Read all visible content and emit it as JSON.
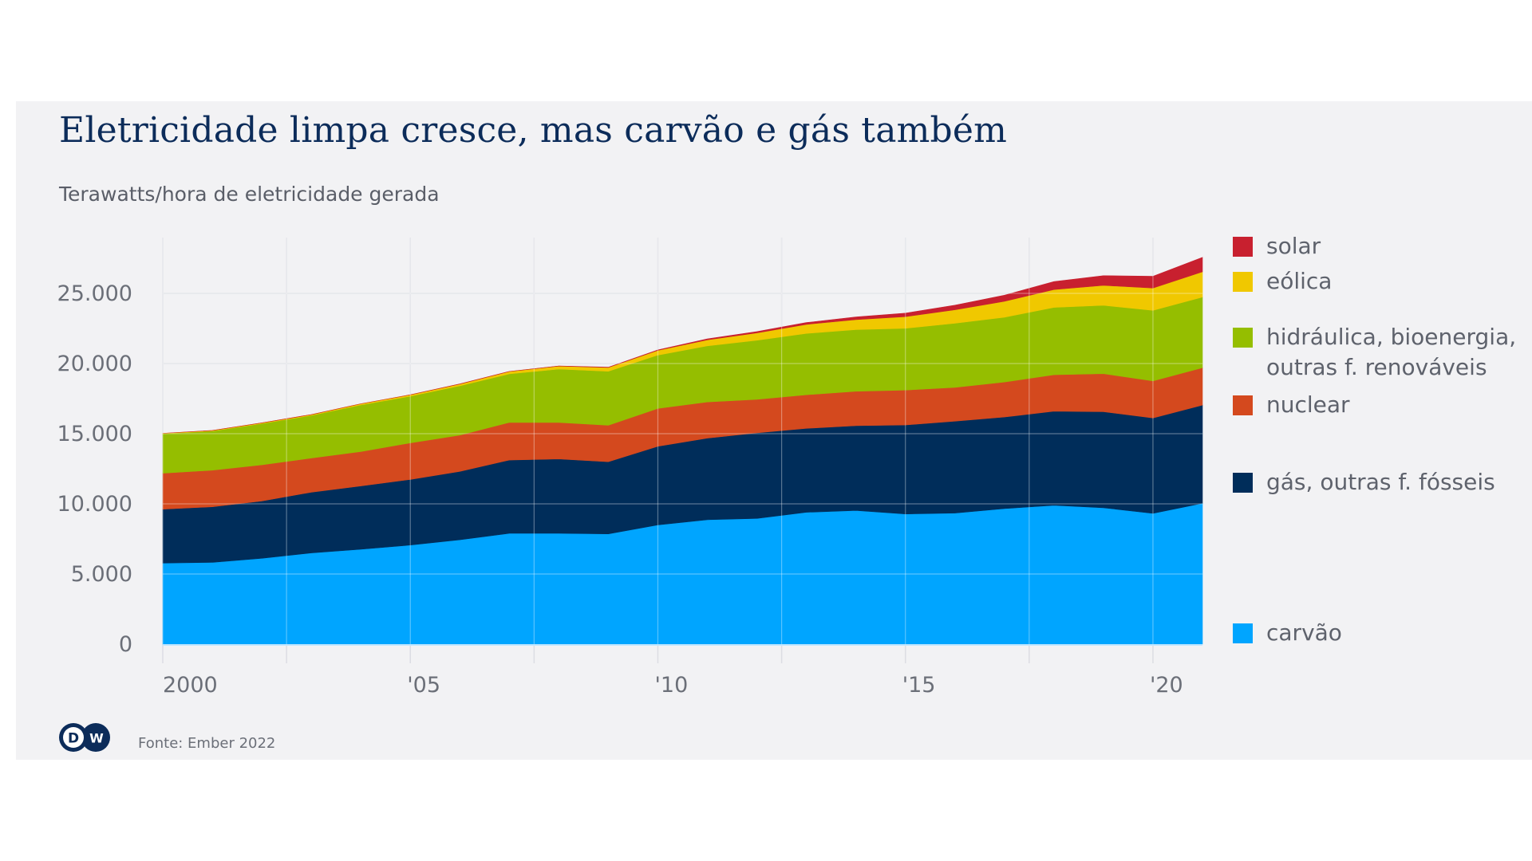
{
  "header": {
    "title": "Eletricidade limpa cresce, mas carvão e gás também",
    "subtitle": "Terawatts/hora de eletricidade gerada"
  },
  "footer": {
    "logo_text": "DW",
    "logo_icon": "dw-logo-icon",
    "source": "Fonte: Ember 2022"
  },
  "chart_data": {
    "type": "area",
    "stacked": true,
    "title": "Eletricidade limpa cresce, mas carvão e gás também",
    "subtitle": "Terawatts/hora de eletricidade gerada",
    "xlabel": "",
    "ylabel": "Terawatts/hora",
    "x": [
      2000,
      2001,
      2002,
      2003,
      2004,
      2005,
      2006,
      2007,
      2008,
      2009,
      2010,
      2011,
      2012,
      2013,
      2014,
      2015,
      2016,
      2017,
      2018,
      2019,
      2020,
      2021
    ],
    "xlim": [
      2000,
      2021
    ],
    "ylim": [
      0,
      27500
    ],
    "grid": true,
    "x_ticks": [
      {
        "value": 2000,
        "label": "2000"
      },
      {
        "value": 2005,
        "label": "'05"
      },
      {
        "value": 2010,
        "label": "'10"
      },
      {
        "value": 2015,
        "label": "'15"
      },
      {
        "value": 2020,
        "label": "'20"
      }
    ],
    "x_minor_grid": [
      2002.5,
      2007.5,
      2012.5,
      2017.5
    ],
    "y_ticks": [
      {
        "value": 0,
        "label": "0"
      },
      {
        "value": 5000,
        "label": "5.000"
      },
      {
        "value": 10000,
        "label": "10.000"
      },
      {
        "value": 15000,
        "label": "15.000"
      },
      {
        "value": 20000,
        "label": "20.000"
      },
      {
        "value": 25000,
        "label": "25.000"
      }
    ],
    "legend_position": "right",
    "series": [
      {
        "name": "carvão",
        "color": "#00a5ff",
        "values": [
          5780,
          5830,
          6120,
          6500,
          6760,
          7060,
          7440,
          7900,
          7900,
          7860,
          8500,
          8870,
          8960,
          9400,
          9530,
          9280,
          9340,
          9660,
          9900,
          9720,
          9320,
          10040
        ]
      },
      {
        "name": "gás, outras f. fósseis",
        "color": "#002d5a",
        "values": [
          3840,
          3960,
          4080,
          4330,
          4510,
          4680,
          4870,
          5220,
          5300,
          5140,
          5600,
          5810,
          6100,
          5980,
          6040,
          6340,
          6550,
          6530,
          6700,
          6850,
          6800,
          7000
        ]
      },
      {
        "name": "nuclear",
        "color": "#d4491e",
        "values": [
          2560,
          2610,
          2580,
          2430,
          2460,
          2600,
          2590,
          2680,
          2600,
          2600,
          2700,
          2580,
          2390,
          2390,
          2450,
          2490,
          2410,
          2490,
          2600,
          2710,
          2640,
          2660
        ]
      },
      {
        "name": "hidráulica, bioenergia, outras f. renováveis",
        "color": "#95be00",
        "values": [
          2820,
          2790,
          2940,
          3040,
          3320,
          3330,
          3510,
          3460,
          3800,
          3850,
          3800,
          4000,
          4210,
          4380,
          4400,
          4400,
          4570,
          4620,
          4800,
          4870,
          5030,
          5040
        ]
      },
      {
        "name": "eólica",
        "color": "#f0c800",
        "values": [
          30,
          40,
          50,
          60,
          80,
          100,
          130,
          170,
          220,
          270,
          340,
          430,
          520,
          640,
          710,
          830,
          960,
          1130,
          1270,
          1420,
          1590,
          1800
        ]
      },
      {
        "name": "solar",
        "color": "#c8202f",
        "values": [
          1,
          1,
          2,
          2,
          3,
          4,
          6,
          8,
          12,
          21,
          32,
          63,
          100,
          130,
          190,
          250,
          330,
          440,
          570,
          690,
          840,
          1030
        ]
      }
    ]
  },
  "legend": {
    "items": [
      {
        "label": "solar",
        "color": "#c8202f"
      },
      {
        "label": "eólica",
        "color": "#f0c800"
      },
      {
        "label": "hidráulica, bioenergia, outras f. renováveis",
        "color": "#95be00"
      },
      {
        "label": "nuclear",
        "color": "#d4491e"
      },
      {
        "label": "gás, outras f. fósseis",
        "color": "#002d5a"
      },
      {
        "label": "carvão",
        "color": "#00a5ff"
      }
    ]
  }
}
